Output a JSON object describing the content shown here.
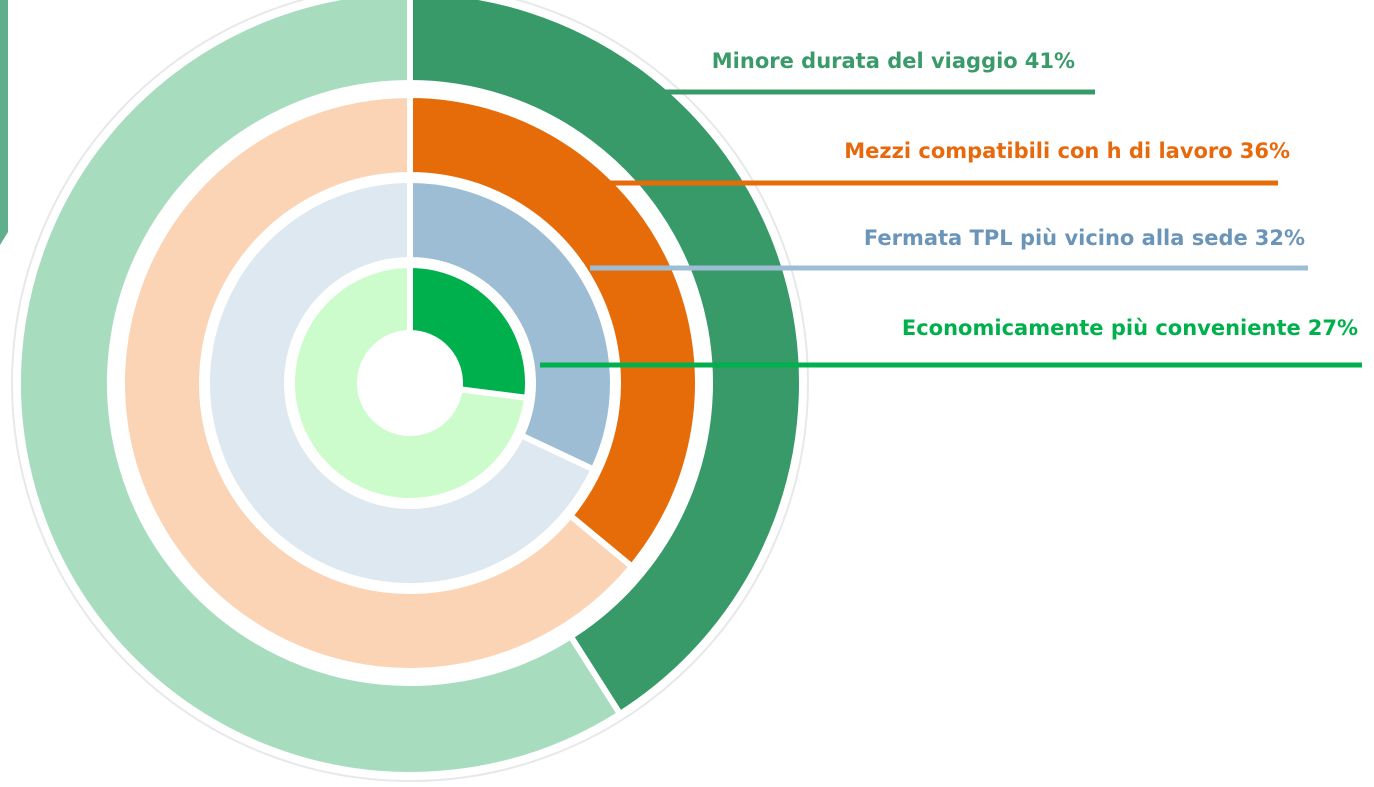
{
  "chart_data": {
    "type": "radial",
    "categories": [
      "Minore durata del viaggio",
      "Mezzi compatibili con h di lavoro",
      "Fermata TPL più vicino alla sede",
      "Economicamente più conveniente"
    ],
    "values": [
      41,
      36,
      32,
      27
    ],
    "value_labels": [
      "41%",
      "36%",
      "32%",
      "27%"
    ],
    "colors": [
      "#389a68",
      "#e66c0a",
      "#9dbdd4",
      "#00b04c"
    ],
    "track_colors": [
      "#a8dcbf",
      "#fbd4b6",
      "#dde8f0",
      "#ccfccb"
    ],
    "label_colors": [
      "#3a9a6a",
      "#e8690c",
      "#6b95b8",
      "#00b04c"
    ]
  }
}
